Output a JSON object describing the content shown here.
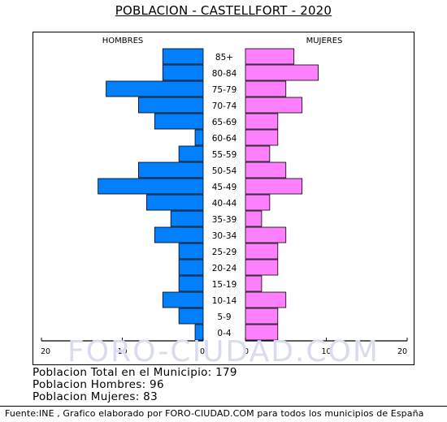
{
  "title": "POBLACION - CASTELLFORT - 2020",
  "watermark": "FORO-CIUDAD.COM",
  "chart_data": {
    "type": "bar",
    "orientation": "horizontal-pyramid",
    "categories": [
      "85+",
      "80-84",
      "75-79",
      "70-74",
      "65-69",
      "60-64",
      "55-59",
      "50-54",
      "45-49",
      "40-44",
      "35-39",
      "30-34",
      "25-29",
      "20-24",
      "15-19",
      "10-14",
      "5-9",
      "0-4"
    ],
    "series": [
      {
        "name": "HOMBRES",
        "color": "#0080ff",
        "values": [
          5,
          5,
          12,
          8,
          6,
          1,
          3,
          8,
          13,
          7,
          4,
          6,
          3,
          3,
          3,
          5,
          3,
          1
        ]
      },
      {
        "name": "MUJERES",
        "color": "#ff80ff",
        "values": [
          6,
          9,
          5,
          7,
          4,
          4,
          3,
          5,
          7,
          3,
          2,
          5,
          4,
          4,
          2,
          5,
          4,
          4
        ]
      }
    ],
    "xticks_left": [
      "20",
      "10",
      "0"
    ],
    "xticks_right": [
      "0",
      "10",
      "20"
    ],
    "xlim": [
      0,
      20
    ],
    "grid": false,
    "legend": "top"
  },
  "stats": {
    "total": "Poblacion Total en el Municipio: 179",
    "hombres": "Poblacion Hombres: 96",
    "mujeres": "Poblacion Mujeres: 83"
  },
  "footer": "Fuente:INE , Grafico elaborado por FORO-CIUDAD.COM para todos los municipios de España"
}
